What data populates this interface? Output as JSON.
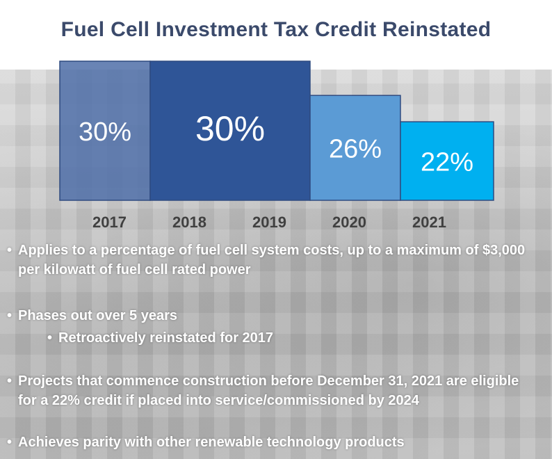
{
  "title": "Fuel Cell Investment Tax Credit Reinstated",
  "chart_data": {
    "type": "bar",
    "categories": [
      "2017",
      "2018",
      "2019",
      "2020",
      "2021"
    ],
    "bars": [
      {
        "label": "30%",
        "value": 30,
        "years": [
          "2017"
        ],
        "color": "#4f6fa8"
      },
      {
        "label": "30%",
        "value": 30,
        "years": [
          "2018",
          "2019"
        ],
        "color": "#2f5597"
      },
      {
        "label": "26%",
        "value": 26,
        "years": [
          "2020"
        ],
        "color": "#5b9bd5"
      },
      {
        "label": "22%",
        "value": 22,
        "years": [
          "2021"
        ],
        "color": "#00b0f0"
      }
    ],
    "ylim": [
      0,
      30
    ],
    "xlabel": "",
    "ylabel": ""
  },
  "bullets": [
    {
      "text": "Applies to a percentage of fuel cell system costs, up to a maximum of $3,000 per kilowatt of fuel cell rated power",
      "level": 1
    },
    {
      "text": "Phases out over 5 years",
      "level": 1
    },
    {
      "text": "Retroactively reinstated for 2017",
      "level": 2
    },
    {
      "text": "Projects that commence construction before December 31, 2021 are eligible for a 22% credit if placed into service/commissioned by 2024",
      "level": 1
    },
    {
      "text": "Achieves parity with other renewable technology products",
      "level": 1
    }
  ]
}
